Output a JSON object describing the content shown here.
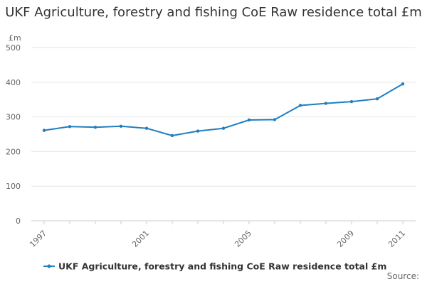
{
  "chart_data": {
    "type": "line",
    "title": "UKF Agriculture, forestry and fishing CoE Raw residence total £m",
    "ylabel": "£m",
    "xlabel": "",
    "ylim": [
      0,
      500
    ],
    "yticks": [
      0,
      100,
      200,
      300,
      400,
      500
    ],
    "xlim": [
      1997,
      2011
    ],
    "xticks": [
      1997,
      2001,
      2005,
      2009,
      2011
    ],
    "grid": true,
    "legend_position": "bottom",
    "source": "Source:",
    "colors": {
      "series": "#1f7fbf",
      "grid": "#e6e6e6",
      "axis": "#cccccc"
    },
    "series": [
      {
        "name": "UKF Agriculture, forestry and fishing CoE Raw residence total £m",
        "x": [
          1997,
          1998,
          1999,
          2000,
          2001,
          2002,
          2003,
          2004,
          2005,
          2006,
          2007,
          2008,
          2009,
          2010,
          2011
        ],
        "values": [
          261,
          272,
          270,
          273,
          267,
          246,
          259,
          267,
          291,
          292,
          333,
          339,
          344,
          352,
          395
        ]
      }
    ]
  }
}
